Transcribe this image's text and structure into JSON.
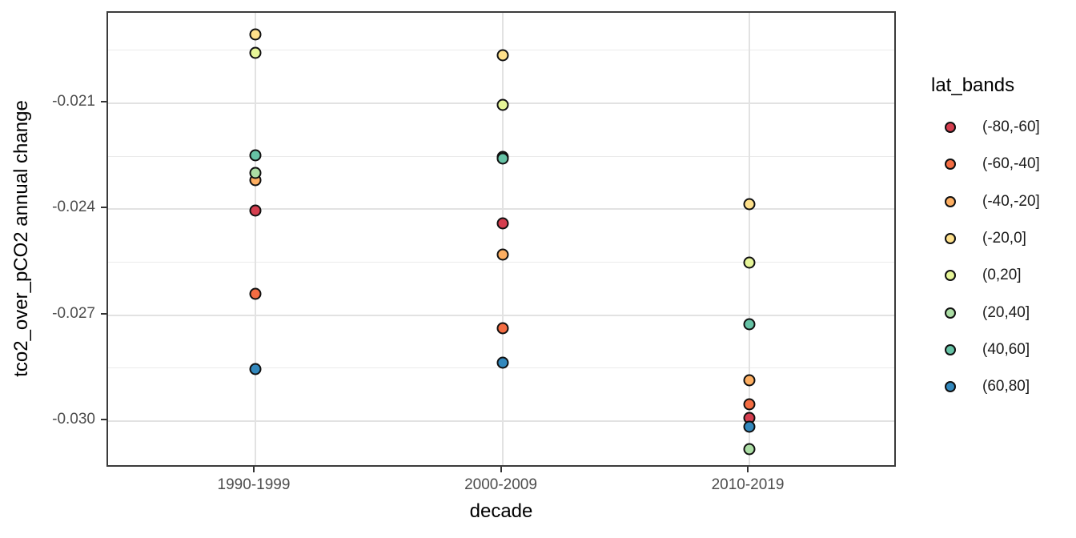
{
  "colors": {
    "background": "#FFFFFF",
    "panel_border": "#3B3B3B",
    "grid_major": "#E2E2E2",
    "grid_minor": "#EBEBEB",
    "tick_label": "#4D4D4D",
    "axis_title": "#000000",
    "point_stroke": "#101010"
  },
  "chart_data": {
    "type": "scatter",
    "title": "",
    "xlabel": "decade",
    "ylabel": "tco2_over_pCO2 annual change",
    "categories": [
      "1990-1999",
      "2000-2009",
      "2010-2019"
    ],
    "ylim": [
      -0.03134,
      -0.01844
    ],
    "y_major_ticks": [
      -0.021,
      -0.024,
      -0.027,
      -0.03
    ],
    "y_tick_labels": [
      "-0.021",
      "-0.024",
      "-0.027",
      "-0.030"
    ],
    "y_minor_ticks": [
      -0.0195,
      -0.0225,
      -0.0255,
      -0.0285
    ],
    "grid": true,
    "legend_title": "lat_bands",
    "legend_position": "right",
    "point_style": {
      "shape": "circle-filled",
      "stroke": "#101010"
    },
    "series": [
      {
        "name": "(-80,-60]",
        "color": "#D53E4F",
        "values": [
          -0.02404,
          -0.0244,
          -0.02992
        ]
      },
      {
        "name": "(-60,-40]",
        "color": "#F46D43",
        "values": [
          -0.0264,
          -0.02737,
          -0.02953
        ]
      },
      {
        "name": "(-40,-20]",
        "color": "#FDAE61",
        "values": [
          -0.02318,
          -0.02529,
          -0.02885
        ]
      },
      {
        "name": "(-20,0]",
        "color": "#FEE08B",
        "values": [
          -0.01905,
          -0.01964,
          -0.02386
        ]
      },
      {
        "name": "(0,20]",
        "color": "#E6F598",
        "values": [
          -0.01957,
          -0.02104,
          -0.02551
        ]
      },
      {
        "name": "(20,40]",
        "color": "#ABDDA4",
        "values": [
          -0.02297,
          -0.02252,
          -0.0308
        ]
      },
      {
        "name": "(40,60]",
        "color": "#66C2A5",
        "values": [
          -0.02248,
          -0.02257,
          -0.02726
        ]
      },
      {
        "name": "(60,80]",
        "color": "#3288BD",
        "values": [
          -0.02853,
          -0.02835,
          -0.03017
        ]
      }
    ]
  }
}
